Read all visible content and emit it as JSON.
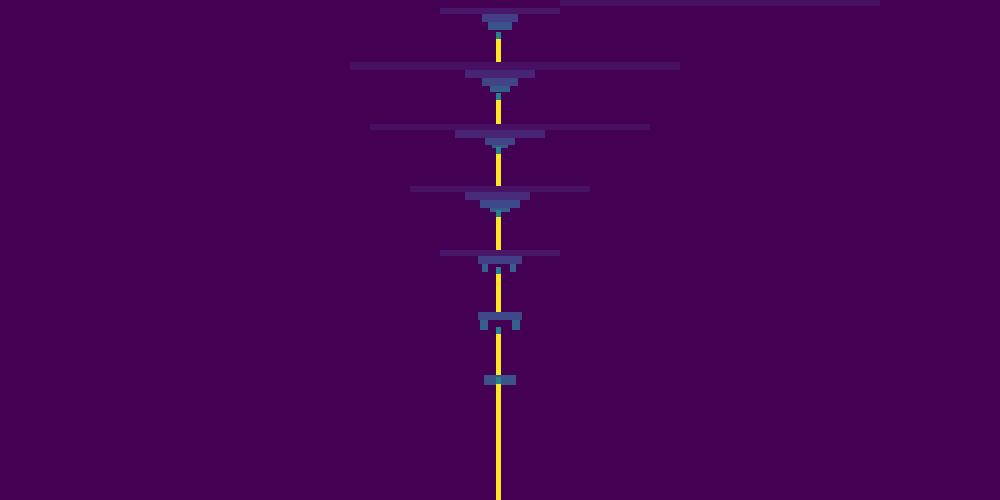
{
  "chart_data": {
    "type": "heatmap",
    "tick_labels": false,
    "xlim": [
      0,
      200
    ],
    "ylim": [
      100,
      0
    ],
    "zlim": [
      0,
      1
    ],
    "cells": [
      [
        112,
        176,
        0,
        1.2,
        0.04
      ],
      [
        88,
        112,
        1.6,
        2.8,
        0.06
      ],
      [
        96.4,
        103.6,
        2.8,
        4.4,
        0.18
      ],
      [
        97.6,
        102.4,
        4.4,
        6,
        0.25
      ],
      [
        70,
        136,
        12.4,
        14,
        0.04
      ],
      [
        93,
        107,
        14,
        15.6,
        0.1
      ],
      [
        96.4,
        103.6,
        15.6,
        17.2,
        0.2
      ],
      [
        98,
        102,
        17.2,
        18.4,
        0.28
      ],
      [
        74,
        130,
        24.8,
        26,
        0.04
      ],
      [
        91,
        109,
        26,
        27.6,
        0.1
      ],
      [
        97,
        103,
        27.6,
        29,
        0.2
      ],
      [
        98.4,
        101.6,
        29,
        29.6,
        0.28
      ],
      [
        82,
        118,
        37.2,
        38.4,
        0.05
      ],
      [
        93,
        106,
        38.4,
        40,
        0.12
      ],
      [
        96,
        104,
        40,
        41.6,
        0.22
      ],
      [
        98,
        102,
        41.6,
        42.4,
        0.28
      ],
      [
        88,
        112,
        50,
        51.2,
        0.06
      ],
      [
        95.6,
        104.4,
        51.2,
        52.8,
        0.18
      ],
      [
        96.4,
        97.6,
        52.8,
        54.4,
        0.3
      ],
      [
        102,
        103.2,
        52.8,
        54.4,
        0.3
      ],
      [
        95.6,
        104.4,
        62.4,
        64,
        0.22
      ],
      [
        96,
        97.6,
        64,
        66,
        0.3
      ],
      [
        102.4,
        104,
        64,
        66,
        0.3
      ],
      [
        96.8,
        103.2,
        75,
        77,
        0.25
      ],
      [
        99.2,
        100.2,
        7.7,
        12.4,
        1
      ],
      [
        99.2,
        100.2,
        19.9,
        24.8,
        1
      ],
      [
        99.2,
        100.2,
        30.7,
        37.2,
        1
      ],
      [
        99.2,
        100.2,
        43.3,
        50,
        1
      ],
      [
        99.2,
        100.2,
        54.7,
        62.4,
        1
      ],
      [
        99.2,
        100.2,
        66.7,
        75,
        1
      ],
      [
        99.2,
        100.2,
        76.7,
        100,
        1
      ],
      [
        99.2,
        100.2,
        6.3,
        7.7,
        0.45
      ],
      [
        99.2,
        100.2,
        18.5,
        19.9,
        0.45
      ],
      [
        99.2,
        100.2,
        29.3,
        30.7,
        0.45
      ],
      [
        99.2,
        100.2,
        41.9,
        43.3,
        0.45
      ],
      [
        99.2,
        100.2,
        53.3,
        54.7,
        0.45
      ],
      [
        99.2,
        100.2,
        65.3,
        66.7,
        0.45
      ],
      [
        99.2,
        100.2,
        75.3,
        76.7,
        0.45
      ]
    ]
  }
}
